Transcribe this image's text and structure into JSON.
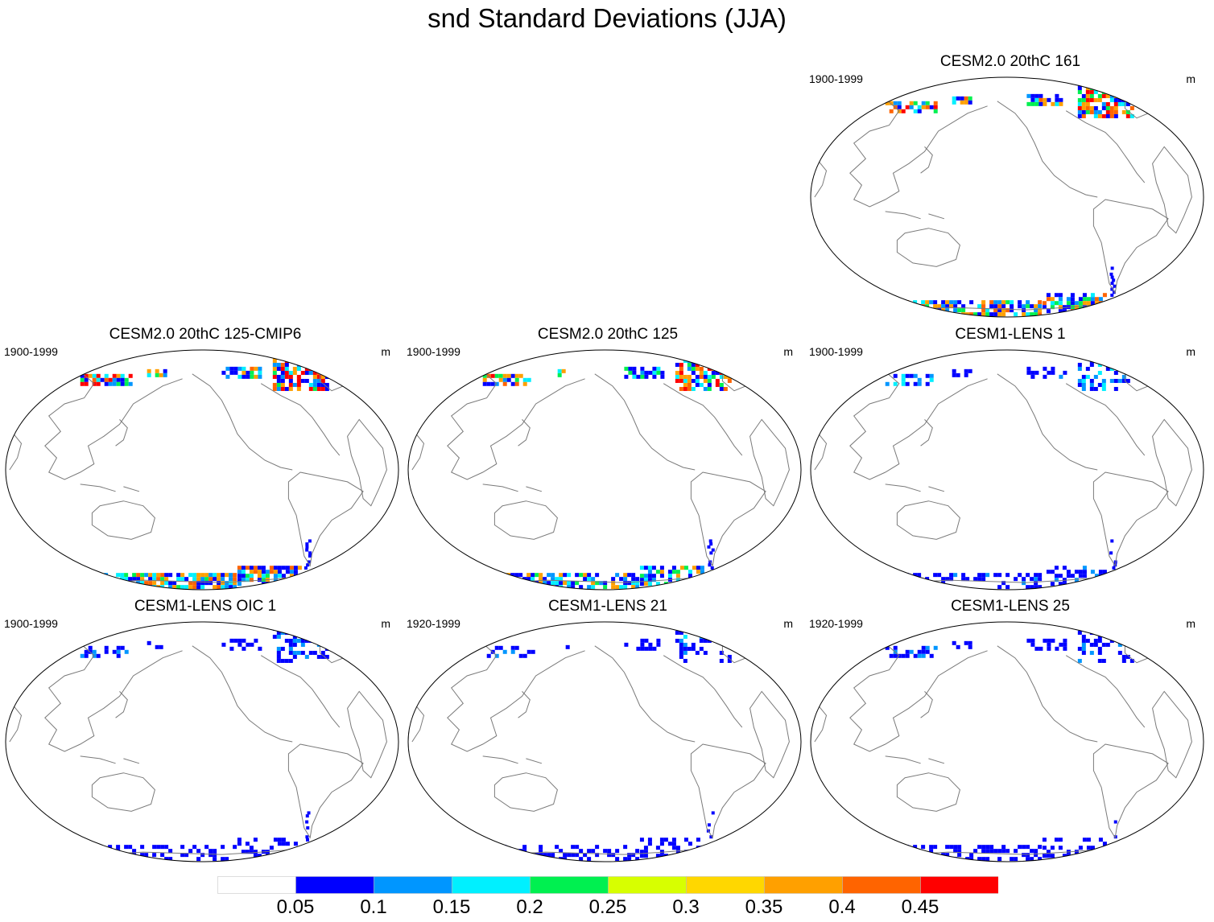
{
  "title": "snd Standard Deviations (JJA)",
  "panels": [
    {
      "title": "CESM2.0 20thC 161",
      "years": "1900-1999",
      "units": "m",
      "intensity": 1.0
    },
    {
      "title": "CESM2.0 20thC 125-CMIP6",
      "years": "1900-1999",
      "units": "m",
      "intensity": 1.0
    },
    {
      "title": "CESM2.0 20thC 125",
      "years": "1900-1999",
      "units": "m",
      "intensity": 0.8
    },
    {
      "title": "CESM1-LENS 1",
      "years": "1900-1999",
      "units": "m",
      "intensity": 0.35
    },
    {
      "title": "CESM1-LENS OIC 1",
      "years": "1900-1999",
      "units": "m",
      "intensity": 0.3
    },
    {
      "title": "CESM1-LENS 21",
      "years": "1920-1999",
      "units": "m",
      "intensity": 0.3
    },
    {
      "title": "CESM1-LENS 25",
      "years": "1920-1999",
      "units": "m",
      "intensity": 0.3
    }
  ],
  "colorbar": {
    "labels": [
      "0.05",
      "0.1",
      "0.15",
      "0.2",
      "0.25",
      "0.3",
      "0.35",
      "0.4",
      "0.45"
    ],
    "colors": [
      "#ffffff",
      "#0000ff",
      "#0096ff",
      "#00f0ff",
      "#00f050",
      "#d7ff00",
      "#ffd700",
      "#ffa000",
      "#ff6400",
      "#ff0000"
    ]
  }
}
